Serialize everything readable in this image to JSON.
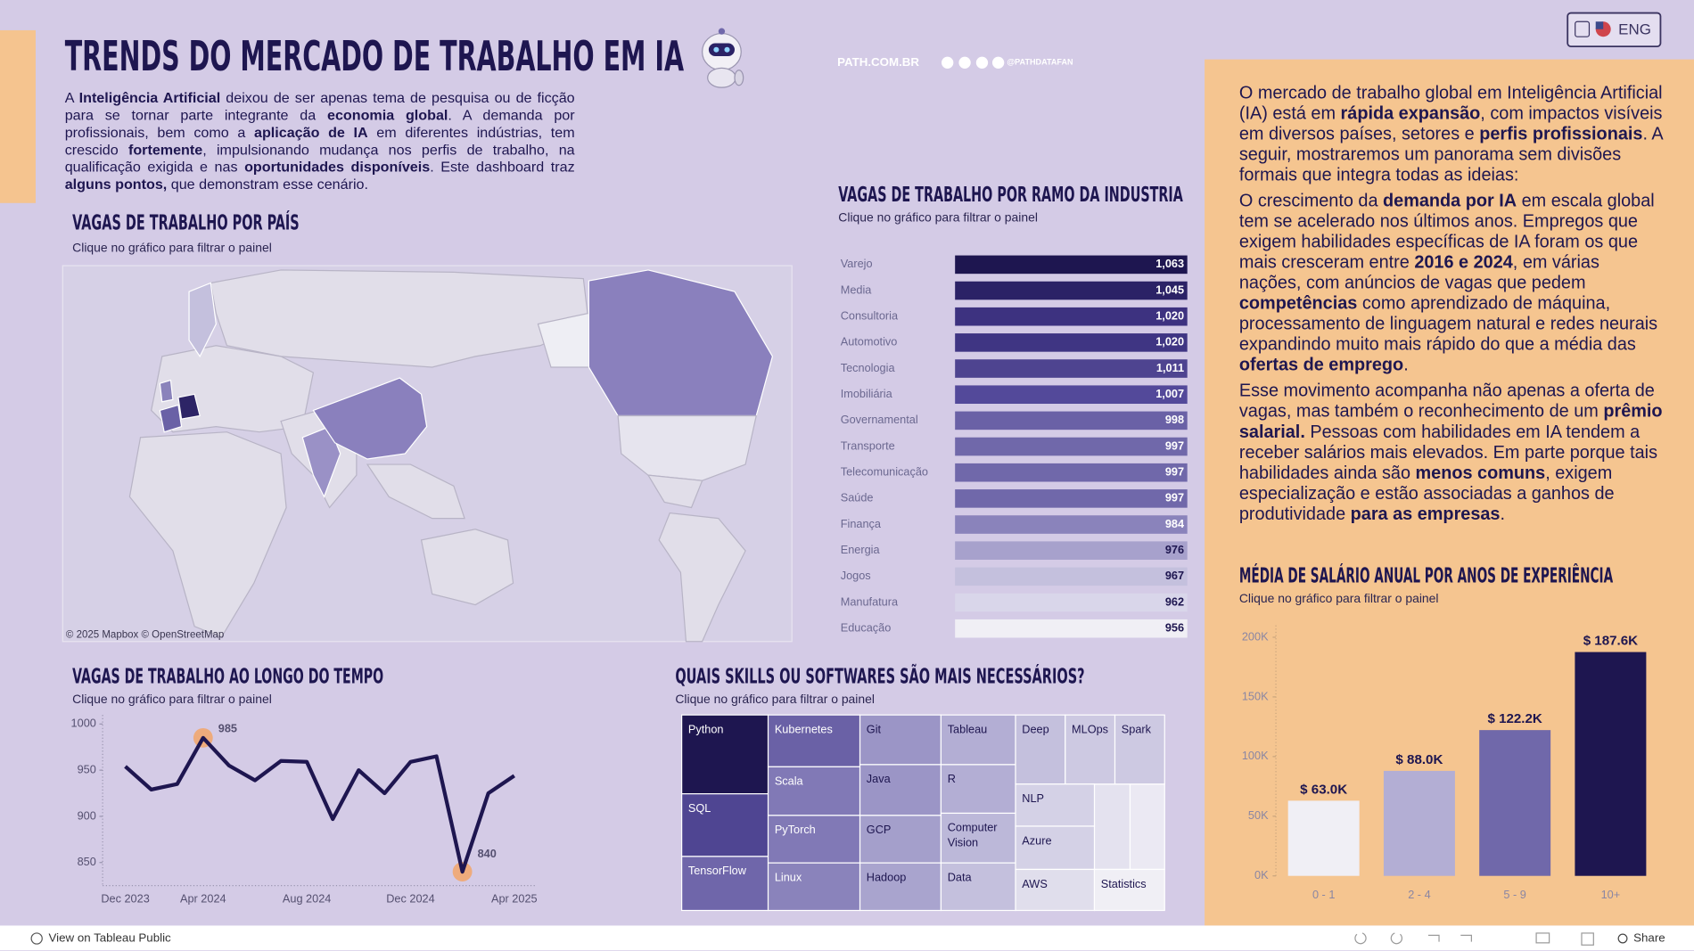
{
  "header": {
    "title": "TRENDS DO MERCADO DE TRABALHO EM IA",
    "site": "PATH.COM.BR",
    "handle": "@PATHDATAFAN",
    "language_button": "ENG"
  },
  "intro": [
    {
      "text": "A "
    },
    {
      "text": "Inteligência Artificial",
      "bold": true
    },
    {
      "text": " deixou de ser apenas tema de pesquisa ou de ficção para se tornar parte integrante da "
    },
    {
      "text": "economia global",
      "bold": true
    },
    {
      "text": ". A demanda por profissionais, bem como a "
    },
    {
      "text": "aplicação de IA",
      "bold": true
    },
    {
      "text": " em diferentes indústrias, tem crescido "
    },
    {
      "text": "fortemente",
      "bold": true
    },
    {
      "text": ", impulsionando mudança nos perfis de trabalho, na qualificação exigida e nas "
    },
    {
      "text": "oportunidades disponíveis",
      "bold": true
    },
    {
      "text": ". Este dashboard traz "
    },
    {
      "text": "alguns pontos,",
      "bold": true
    },
    {
      "text": " que demonstram esse cenário."
    }
  ],
  "side_text": [
    [
      {
        "text": "O mercado de trabalho global em Inteligência Artificial (IA) está em "
      },
      {
        "text": "rápida expansão",
        "bold": true
      },
      {
        "text": ", com impactos visíveis em diversos países, setores e "
      },
      {
        "text": "perfis profissionais",
        "bold": true
      },
      {
        "text": ". A seguir, mostraremos um panorama sem divisões formais que integra todas as ideias:"
      }
    ],
    [
      {
        "text": "O crescimento da "
      },
      {
        "text": "demanda por IA",
        "bold": true
      },
      {
        "text": " em escala global tem se acelerado nos últimos anos. Empregos que exigem habilidades específicas de IA foram os que mais cresceram entre "
      },
      {
        "text": "2016 e 2024",
        "bold": true
      },
      {
        "text": ", em várias nações, com anúncios de vagas que pedem "
      },
      {
        "text": "competências",
        "bold": true
      },
      {
        "text": " como aprendizado de máquina, processamento de linguagem natural e redes neurais expandindo muito mais rápido do que a média das "
      },
      {
        "text": "ofertas de emprego",
        "bold": true
      },
      {
        "text": "."
      }
    ],
    [
      {
        "text": "Esse movimento acompanha não apenas a oferta de vagas, mas também o reconhecimento de um "
      },
      {
        "text": "prêmio salarial.",
        "bold": true
      },
      {
        "text": " Pessoas com habilidades em IA tendem a receber salários mais elevados. Em parte porque tais habilidades ainda são "
      },
      {
        "text": "menos comuns",
        "bold": true
      },
      {
        "text": ", exigem especialização e estão associadas a ganhos de produtividade "
      },
      {
        "text": "para as empresas",
        "bold": true
      },
      {
        "text": "."
      }
    ]
  ],
  "map": {
    "title": "VAGAS DE TRABALHO POR PAÍS",
    "subtitle": "Clique no gráfico para filtrar o painel",
    "attribution": "© 2025 Mapbox  © OpenStreetMap"
  },
  "treemap": {
    "title": "QUAIS SKILLS OU SOFTWARES SÃO MAIS NECESSÁRIOS?",
    "subtitle": "Clique no gráfico para filtrar o painel",
    "items": [
      "Python",
      "SQL",
      "TensorFlow",
      "Kubernetes",
      "Scala",
      "PyTorch",
      "Linux",
      "Git",
      "Java",
      "GCP",
      "Hadoop",
      "Tableau",
      "R",
      "Computer Vision",
      "Data",
      "Deep",
      "MLOps",
      "Spark",
      "NLP",
      "Azure",
      "AWS",
      "Statistics"
    ]
  },
  "chart_data": [
    {
      "type": "highlight_table",
      "title": "VAGAS DE TRABALHO POR RAMO DA INDUSTRIA",
      "subtitle": "Clique no gráfico para filtrar o painel",
      "categories": [
        "Varejo",
        "Media",
        "Consultoria",
        "Automotivo",
        "Tecnologia",
        "Imobiliária",
        "Governamental",
        "Transporte",
        "Telecomunicação",
        "Saúde",
        "Finança",
        "Energia",
        "Jogos",
        "Manufatura",
        "Educação"
      ],
      "values": [
        1063,
        1045,
        1020,
        1020,
        1011,
        1007,
        998,
        997,
        997,
        997,
        984,
        976,
        967,
        962,
        956
      ],
      "value_labels": [
        "1,063",
        "1,045",
        "1,020",
        "1,020",
        "1,011",
        "1,007",
        "998",
        "997",
        "997",
        "997",
        "984",
        "976",
        "967",
        "962",
        "956"
      ],
      "colors": [
        "#1e1650",
        "#2b2266",
        "#3d3280",
        "#3f3583",
        "#4e4490",
        "#53499a",
        "#6a61a6",
        "#7068aa",
        "#7068aa",
        "#7068aa",
        "#8a83bb",
        "#a7a1cc",
        "#c4c0dd",
        "#d9d6ea",
        "#f0eff5"
      ]
    },
    {
      "type": "line",
      "title": "VAGAS DE TRABALHO AO LONGO DO TEMPO",
      "subtitle": "Clique no gráfico para filtrar o painel",
      "categories": [
        "Dec 2023",
        null,
        null,
        "Apr 2024",
        null,
        null,
        null,
        "Aug 2024",
        null,
        null,
        null,
        "Dec 2024",
        null,
        null,
        null,
        "Apr 2025"
      ],
      "values": [
        954,
        929,
        935,
        985,
        955,
        939,
        960,
        959,
        897,
        950,
        925,
        959,
        965,
        840,
        925,
        944
      ],
      "color": "#1e1650",
      "highlight_color": "#f4a261",
      "ylim": [
        825,
        1009.8
      ],
      "yticks": [
        850,
        900,
        950,
        1000
      ]
    },
    {
      "type": "bar",
      "title": "MÉDIA DE SALÁRIO ANUAL POR ANOS DE EXPERIÊNCIA",
      "subtitle": "Clique no gráfico para filtrar o painel",
      "categories": [
        "0 - 1",
        "2 - 4",
        "5 - 9",
        "10+"
      ],
      "values": [
        63000,
        88000,
        122200,
        187600
      ],
      "value_labels": [
        "$ 63.0K",
        "$ 88.0K",
        "$ 122.2K",
        "$ 187.6K"
      ],
      "colors": [
        "#f0eff5",
        "#b3aed4",
        "#7068aa",
        "#1e1650"
      ],
      "ylim": [
        0,
        210000
      ],
      "yticks": [
        {
          "value": 0,
          "label": "0K"
        },
        {
          "value": 50000,
          "label": "50K"
        },
        {
          "value": 100000,
          "label": "100K"
        },
        {
          "value": 150000,
          "label": "150K"
        },
        {
          "value": 200000,
          "label": "200K"
        }
      ],
      "grid": false
    }
  ],
  "footer": {
    "link": "View on Tableau Public",
    "share": "Share"
  }
}
